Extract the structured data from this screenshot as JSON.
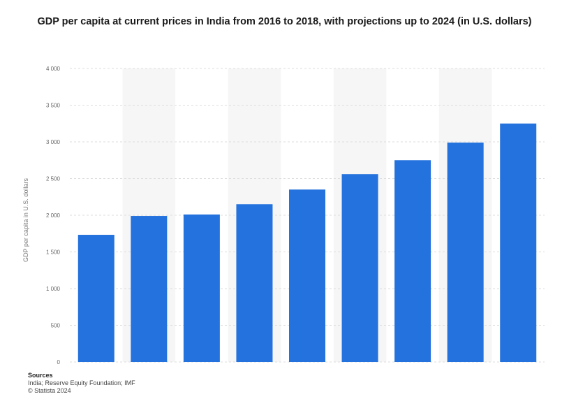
{
  "title": "GDP per capita at current prices in India from 2016 to 2018, with projections up to 2024 (in U.S. dollars)",
  "source": {
    "heading": "Sources",
    "line1": "India; Reserve Equity Foundation; IMF",
    "line2": "© Statista 2024"
  },
  "colors": {
    "bar": "#2472dd",
    "grid": "#dddddd",
    "column_shade": "#f6f6f6"
  },
  "chart_data": {
    "type": "bar",
    "title": "GDP per capita at current prices in India from 2016 to 2018, with projections up to 2024 (in U.S. dollars)",
    "ylabel": "GDP per capita in U.S. dollars",
    "xlabel": "",
    "categories": [
      "",
      "",
      "",
      "",
      "",
      "",
      "",
      "",
      ""
    ],
    "values": [
      1733,
      1990,
      2010,
      2150,
      2350,
      2560,
      2750,
      2990,
      3250
    ],
    "ylim": [
      0,
      4000
    ],
    "yticks": [
      0,
      500,
      1000,
      1500,
      2000,
      2500,
      3000,
      3500,
      4000
    ],
    "ytick_labels": [
      "0",
      "500",
      "1 000",
      "1 500",
      "2 000",
      "2 500",
      "3 000",
      "3 500",
      "4 000"
    ],
    "grid": true,
    "legend": "none"
  }
}
